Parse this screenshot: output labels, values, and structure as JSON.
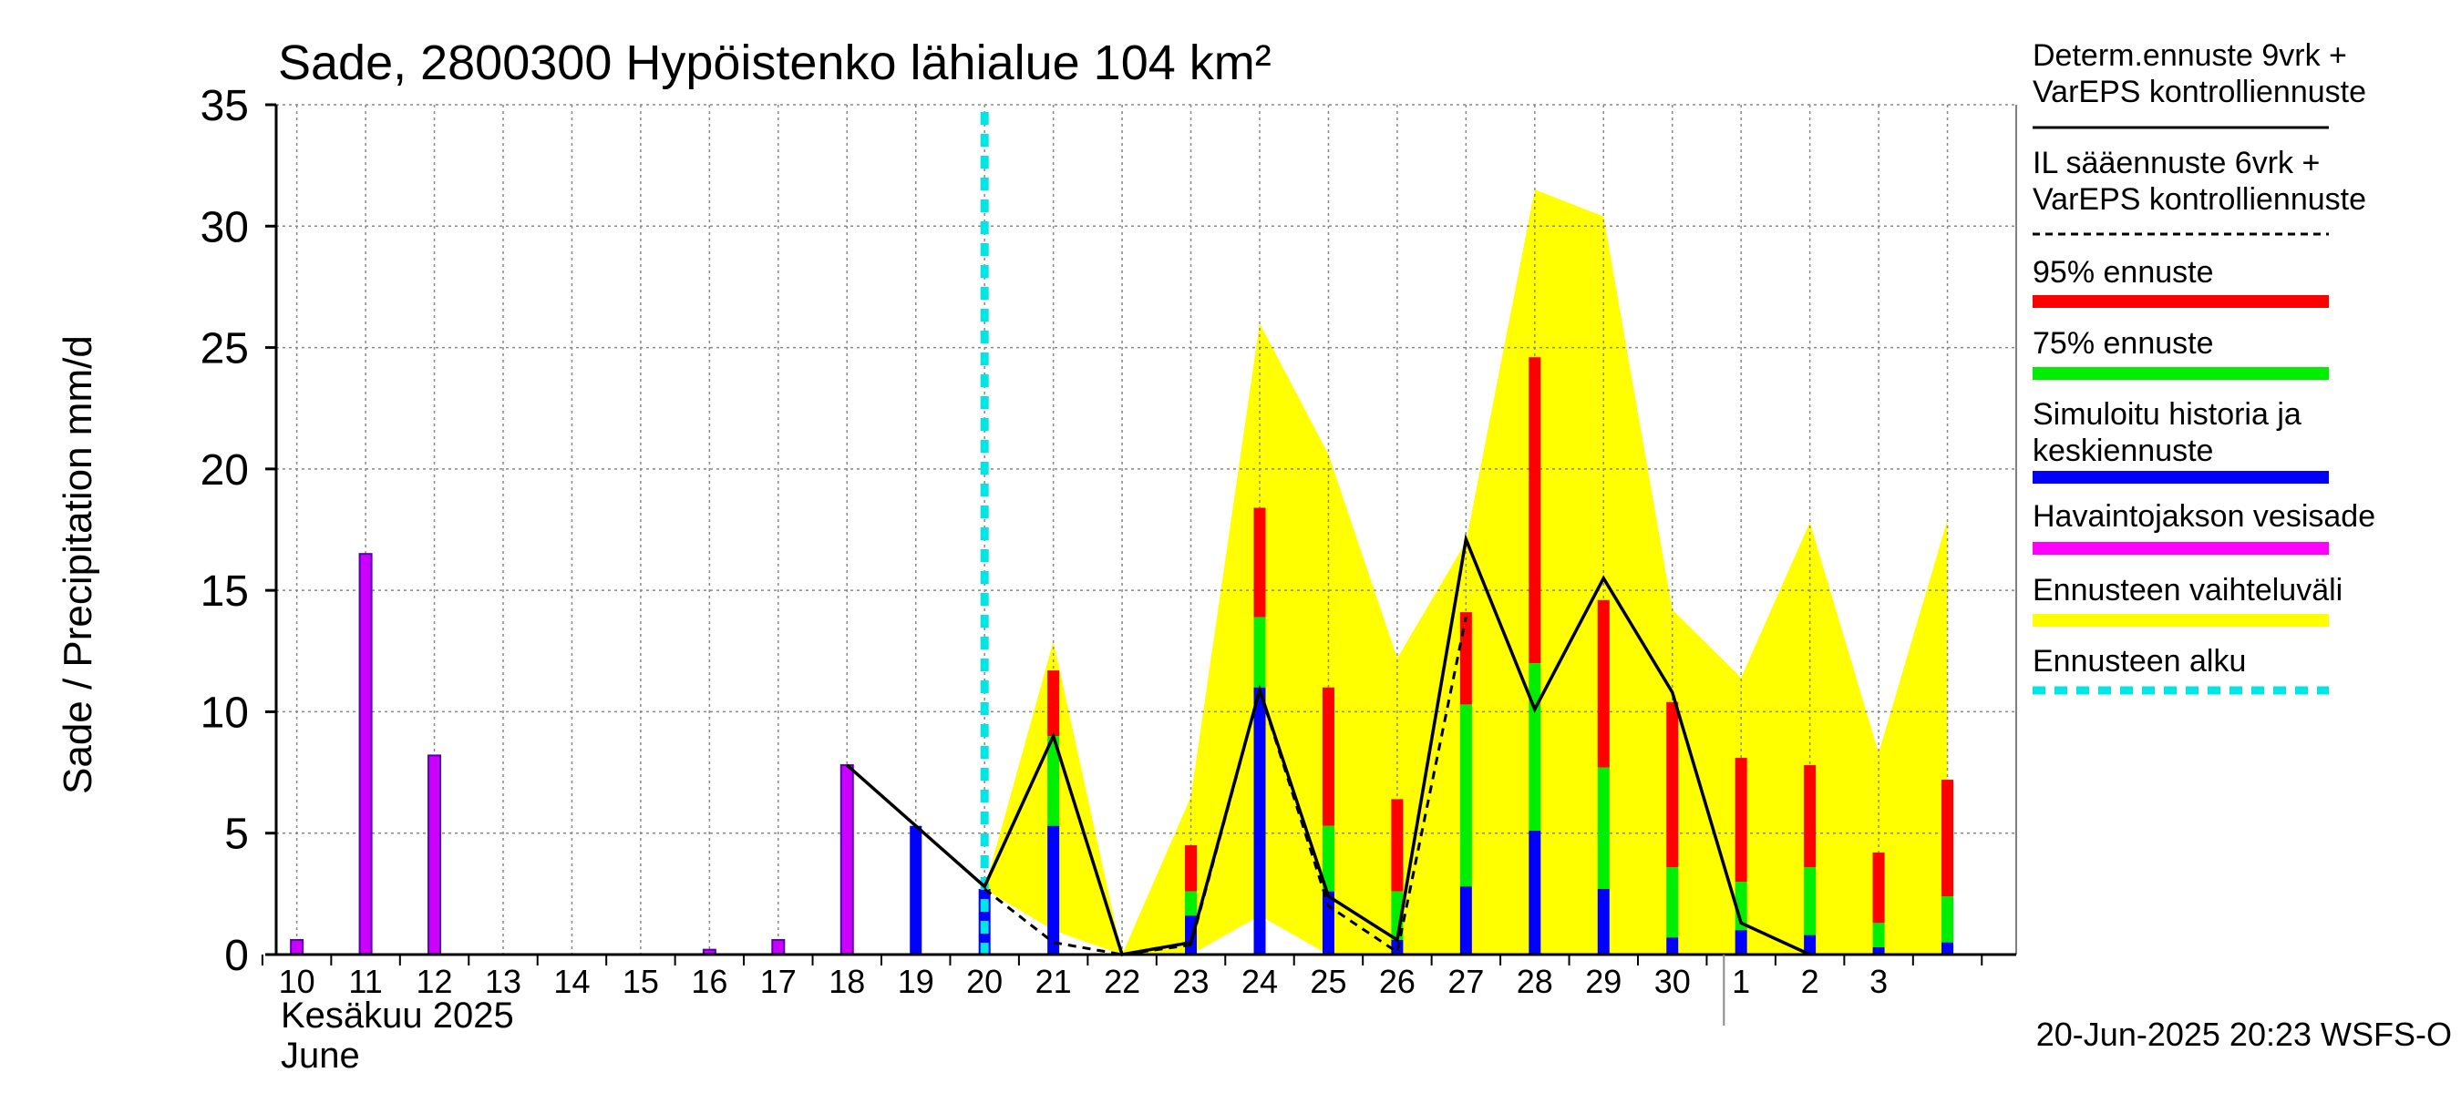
{
  "chart_data": {
    "type": "bar",
    "title": "Sade, 2800300 Hypöistenko lähialue 104 km²",
    "ylabel": "Sade / Precipitation   mm/d",
    "ylim": [
      0,
      35
    ],
    "yticks": [
      0,
      5,
      10,
      15,
      20,
      25,
      30,
      35
    ],
    "grid": true,
    "legend_position": "right",
    "x_tick_labels": [
      "10",
      "11",
      "12",
      "13",
      "14",
      "15",
      "16",
      "17",
      "18",
      "19",
      "20",
      "21",
      "22",
      "23",
      "24",
      "25",
      "26",
      "27",
      "28",
      "29",
      "30",
      "1",
      "2",
      "3"
    ],
    "month_label_fi": "Kesäkuu   2025",
    "month_label_en": "June",
    "footer": "20-Jun-2025 20:23 WSFS-O",
    "forecast_start_day": 20,
    "colors": {
      "observed": "#cc00ff",
      "simulated": "#0000ff",
      "p75": "#00ee00",
      "p95": "#ff0000",
      "range": "#ffff00",
      "forecast_start": "#00e5e5",
      "deterministic": "#000000"
    },
    "observed": [
      {
        "day": 10,
        "value": 0.6
      },
      {
        "day": 11,
        "value": 16.5
      },
      {
        "day": 12,
        "value": 8.2
      },
      {
        "day": 16,
        "value": 0.2
      },
      {
        "day": 17,
        "value": 0.6
      },
      {
        "day": 18,
        "value": 7.8
      }
    ],
    "simulated": [
      {
        "day": 19,
        "value": 5.3
      },
      {
        "day": 20,
        "value": 2.7
      }
    ],
    "forecast": [
      {
        "day": 21,
        "mean": 5.3,
        "p75": 9.0,
        "p95": 11.7
      },
      {
        "day": 22,
        "mean": 0.0,
        "p75": 0.0,
        "p95": 0.0
      },
      {
        "day": 23,
        "mean": 1.6,
        "p75": 2.6,
        "p95": 4.5
      },
      {
        "day": 24,
        "mean": 11.0,
        "p75": 13.9,
        "p95": 18.4
      },
      {
        "day": 25,
        "mean": 2.6,
        "p75": 5.3,
        "p95": 11.0
      },
      {
        "day": 26,
        "mean": 0.6,
        "p75": 2.6,
        "p95": 6.4
      },
      {
        "day": 27,
        "mean": 2.8,
        "p75": 10.3,
        "p95": 14.1
      },
      {
        "day": 28,
        "mean": 5.1,
        "p75": 12.0,
        "p95": 24.6
      },
      {
        "day": 29,
        "mean": 2.7,
        "p75": 7.7,
        "p95": 14.6
      },
      {
        "day": 30,
        "mean": 0.7,
        "p75": 3.6,
        "p95": 10.4
      },
      {
        "day": 31,
        "mean": 1.0,
        "p75": 3.0,
        "p95": 8.1
      },
      {
        "day": 32,
        "mean": 0.8,
        "p75": 3.6,
        "p95": 7.8
      },
      {
        "day": 33,
        "mean": 0.3,
        "p75": 1.3,
        "p95": 4.2
      },
      {
        "day": 34,
        "mean": 0.5,
        "p75": 2.4,
        "p95": 7.2
      }
    ],
    "range_band": {
      "x": [
        20,
        21,
        22,
        23,
        24,
        25,
        26,
        27,
        28,
        29,
        30,
        31,
        32,
        33,
        34
      ],
      "low": [
        2.7,
        1.0,
        0.0,
        0.0,
        1.6,
        0.0,
        0.0,
        0.0,
        0.0,
        0.0,
        0.0,
        0.0,
        0.0,
        0.0,
        0.0
      ],
      "high": [
        2.7,
        12.9,
        0.0,
        6.5,
        26.0,
        20.6,
        12.2,
        17.0,
        31.5,
        30.4,
        14.2,
        11.4,
        17.8,
        8.3,
        17.9
      ]
    },
    "deterministic": {
      "x": [
        18,
        19,
        20,
        21,
        22,
        23,
        24,
        25,
        26,
        27,
        28,
        29,
        30,
        31,
        32
      ],
      "y": [
        7.8,
        5.3,
        2.8,
        9.0,
        0.0,
        0.5,
        10.9,
        2.4,
        0.6,
        17.1,
        10.1,
        15.5,
        10.8,
        1.3,
        0.0
      ]
    },
    "il_forecast": {
      "x": [
        20,
        21,
        22,
        23,
        24,
        25,
        26,
        27
      ],
      "y": [
        2.7,
        0.5,
        0.0,
        0.4,
        10.9,
        2.0,
        0.1,
        13.9
      ]
    },
    "legend": [
      {
        "label": "Determ.ennuste 9vrk +\nVarEPS kontrolliennuste",
        "style": "solid",
        "color": "#000000"
      },
      {
        "label": "IL sääennuste 6vrk  +\n  VarEPS kontrolliennuste",
        "style": "dashed",
        "color": "#000000"
      },
      {
        "label": "95% ennuste",
        "style": "bar",
        "color": "#ff0000"
      },
      {
        "label": "75% ennuste",
        "style": "bar",
        "color": "#00ee00"
      },
      {
        "label": "Simuloitu historia ja\nkeskiennuste",
        "style": "bar",
        "color": "#0000ff"
      },
      {
        "label": "Havaintojakson vesisade",
        "style": "bar",
        "color": "#ff00ff"
      },
      {
        "label": "Ennusteen vaihteluväli",
        "style": "bar",
        "color": "#ffff00"
      },
      {
        "label": "Ennusteen alku",
        "style": "dotted",
        "color": "#00e5e5"
      }
    ]
  }
}
